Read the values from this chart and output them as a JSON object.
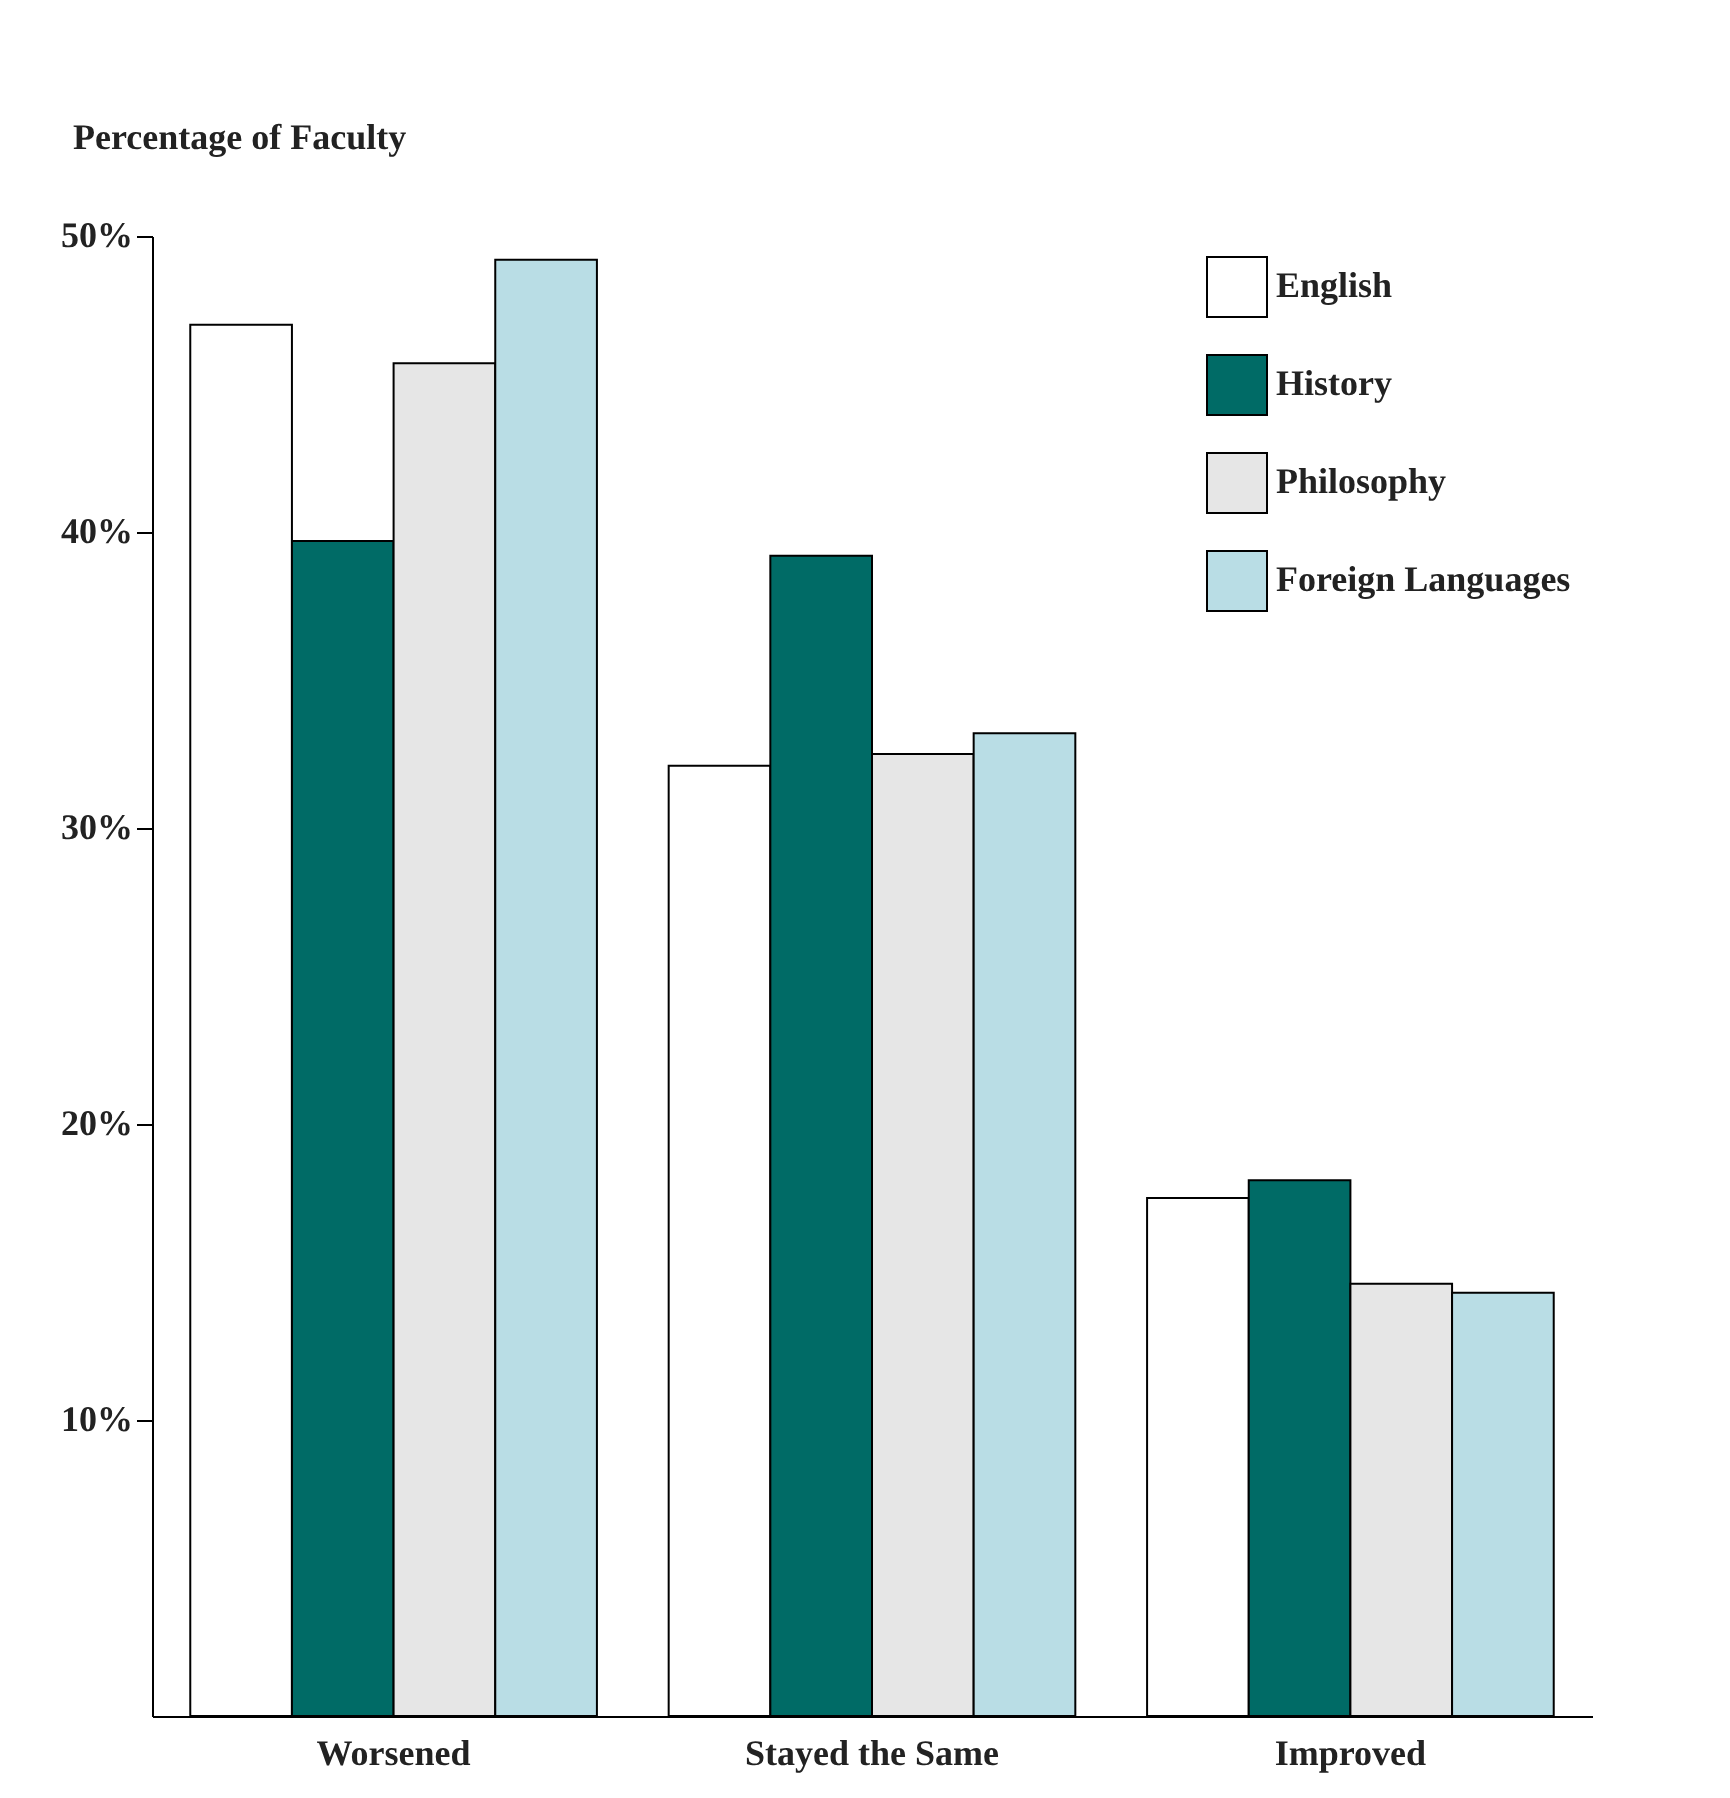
{
  "chart_data": {
    "type": "bar",
    "ylabel": "Percentage of Faculty",
    "categories": [
      "Worsened",
      "Stayed the Same",
      "Improved"
    ],
    "series": [
      {
        "name": "English",
        "color": "#ffffff",
        "values": [
          47.0,
          32.1,
          17.5
        ]
      },
      {
        "name": "History",
        "color": "#006b66",
        "values": [
          39.7,
          39.2,
          18.1
        ]
      },
      {
        "name": "Philosophy",
        "color": "#e6e6e6",
        "values": [
          45.7,
          32.5,
          14.6
        ]
      },
      {
        "name": "Foreign Languages",
        "color": "#b9dde5",
        "values": [
          49.2,
          33.2,
          14.3
        ]
      }
    ],
    "ylim": [
      0,
      50
    ],
    "yticks": [
      {
        "value": 10,
        "label": "10%"
      },
      {
        "value": 20,
        "label": "20%"
      },
      {
        "value": 30,
        "label": "30%"
      },
      {
        "value": 40,
        "label": "40%"
      },
      {
        "value": 50,
        "label": "50%"
      }
    ],
    "legend": "top right",
    "grid": false
  }
}
